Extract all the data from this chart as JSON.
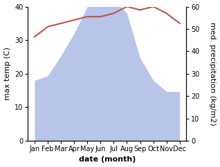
{
  "months": [
    "Jan",
    "Feb",
    "Mar",
    "Apr",
    "May",
    "Jun",
    "Jul",
    "Aug",
    "Sep",
    "Oct",
    "Nov",
    "Dec"
  ],
  "temperature": [
    31,
    34,
    35,
    36,
    37,
    37,
    38,
    40,
    39,
    40,
    38,
    35
  ],
  "precipitation": [
    27,
    29,
    38,
    48,
    60,
    63,
    63,
    57,
    37,
    27,
    22,
    22
  ],
  "temp_color": "#c0504d",
  "precip_fill_color": "#b8c4e8",
  "background_color": "#ffffff",
  "left_ylabel": "max temp (C)",
  "right_ylabel": "med. precipitation (kg/m2)",
  "xlabel": "date (month)",
  "left_ylim": [
    0,
    40
  ],
  "right_ylim": [
    0,
    60
  ],
  "left_yticks": [
    0,
    10,
    20,
    30,
    40
  ],
  "right_yticks": [
    0,
    10,
    20,
    30,
    40,
    50,
    60
  ],
  "label_fontsize": 8,
  "tick_fontsize": 7
}
